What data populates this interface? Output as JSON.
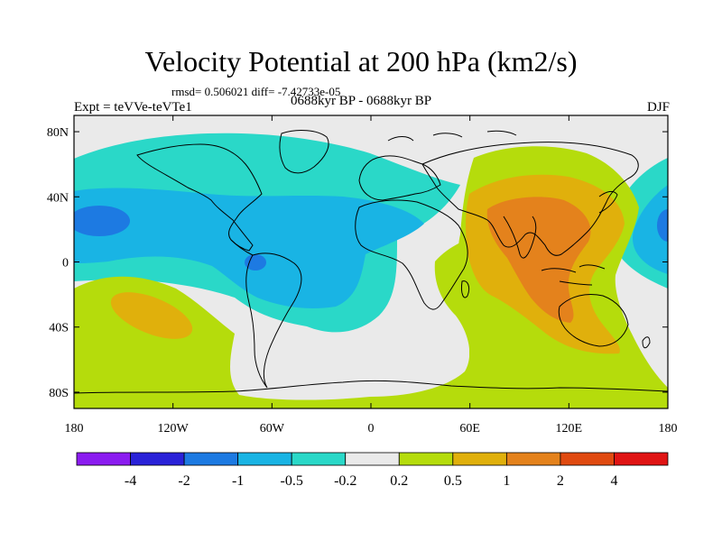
{
  "title": "Velocity Potential at 200 hPa (km2/s)",
  "stats": "rmsd= 0.506021 diff= -7.42733e-05",
  "experiment": "Expt = teVVe-teVTe1",
  "period": "0688kyr BP - 0688kyr BP",
  "season": "DJF",
  "x_ticks": [
    {
      "value": -180,
      "label": "180"
    },
    {
      "value": -120,
      "label": "120W"
    },
    {
      "value": -60,
      "label": "60W"
    },
    {
      "value": 0,
      "label": "0"
    },
    {
      "value": 60,
      "label": "60E"
    },
    {
      "value": 120,
      "label": "120E"
    },
    {
      "value": 180,
      "label": "180"
    }
  ],
  "y_ticks": [
    {
      "value": 80,
      "label": "80N"
    },
    {
      "value": 40,
      "label": "40N"
    },
    {
      "value": 0,
      "label": "0"
    },
    {
      "value": -40,
      "label": "40S"
    },
    {
      "value": -80,
      "label": "80S"
    }
  ],
  "colorbar": {
    "colors": [
      "#8b1cf0",
      "#2a22d8",
      "#1d7ae2",
      "#19b4e4",
      "#2ad8c8",
      "#eaeaea",
      "#b5dc0c",
      "#e0b00c",
      "#e4821c",
      "#e04a10",
      "#e01414"
    ],
    "labels": [
      "-4",
      "-2",
      "-1",
      "-0.5",
      "-0.2",
      "0.2",
      "0.5",
      "1",
      "2",
      "4"
    ]
  },
  "fill_colors": {
    "neg_weak": "#2ad8c8",
    "neg_mid": "#19b4e4",
    "neg_strong": "#1d7ae2",
    "neutral": "#eaeaea",
    "pos_weak": "#b5dc0c",
    "pos_mid": "#e0b00c",
    "pos_strong": "#e4821c"
  }
}
